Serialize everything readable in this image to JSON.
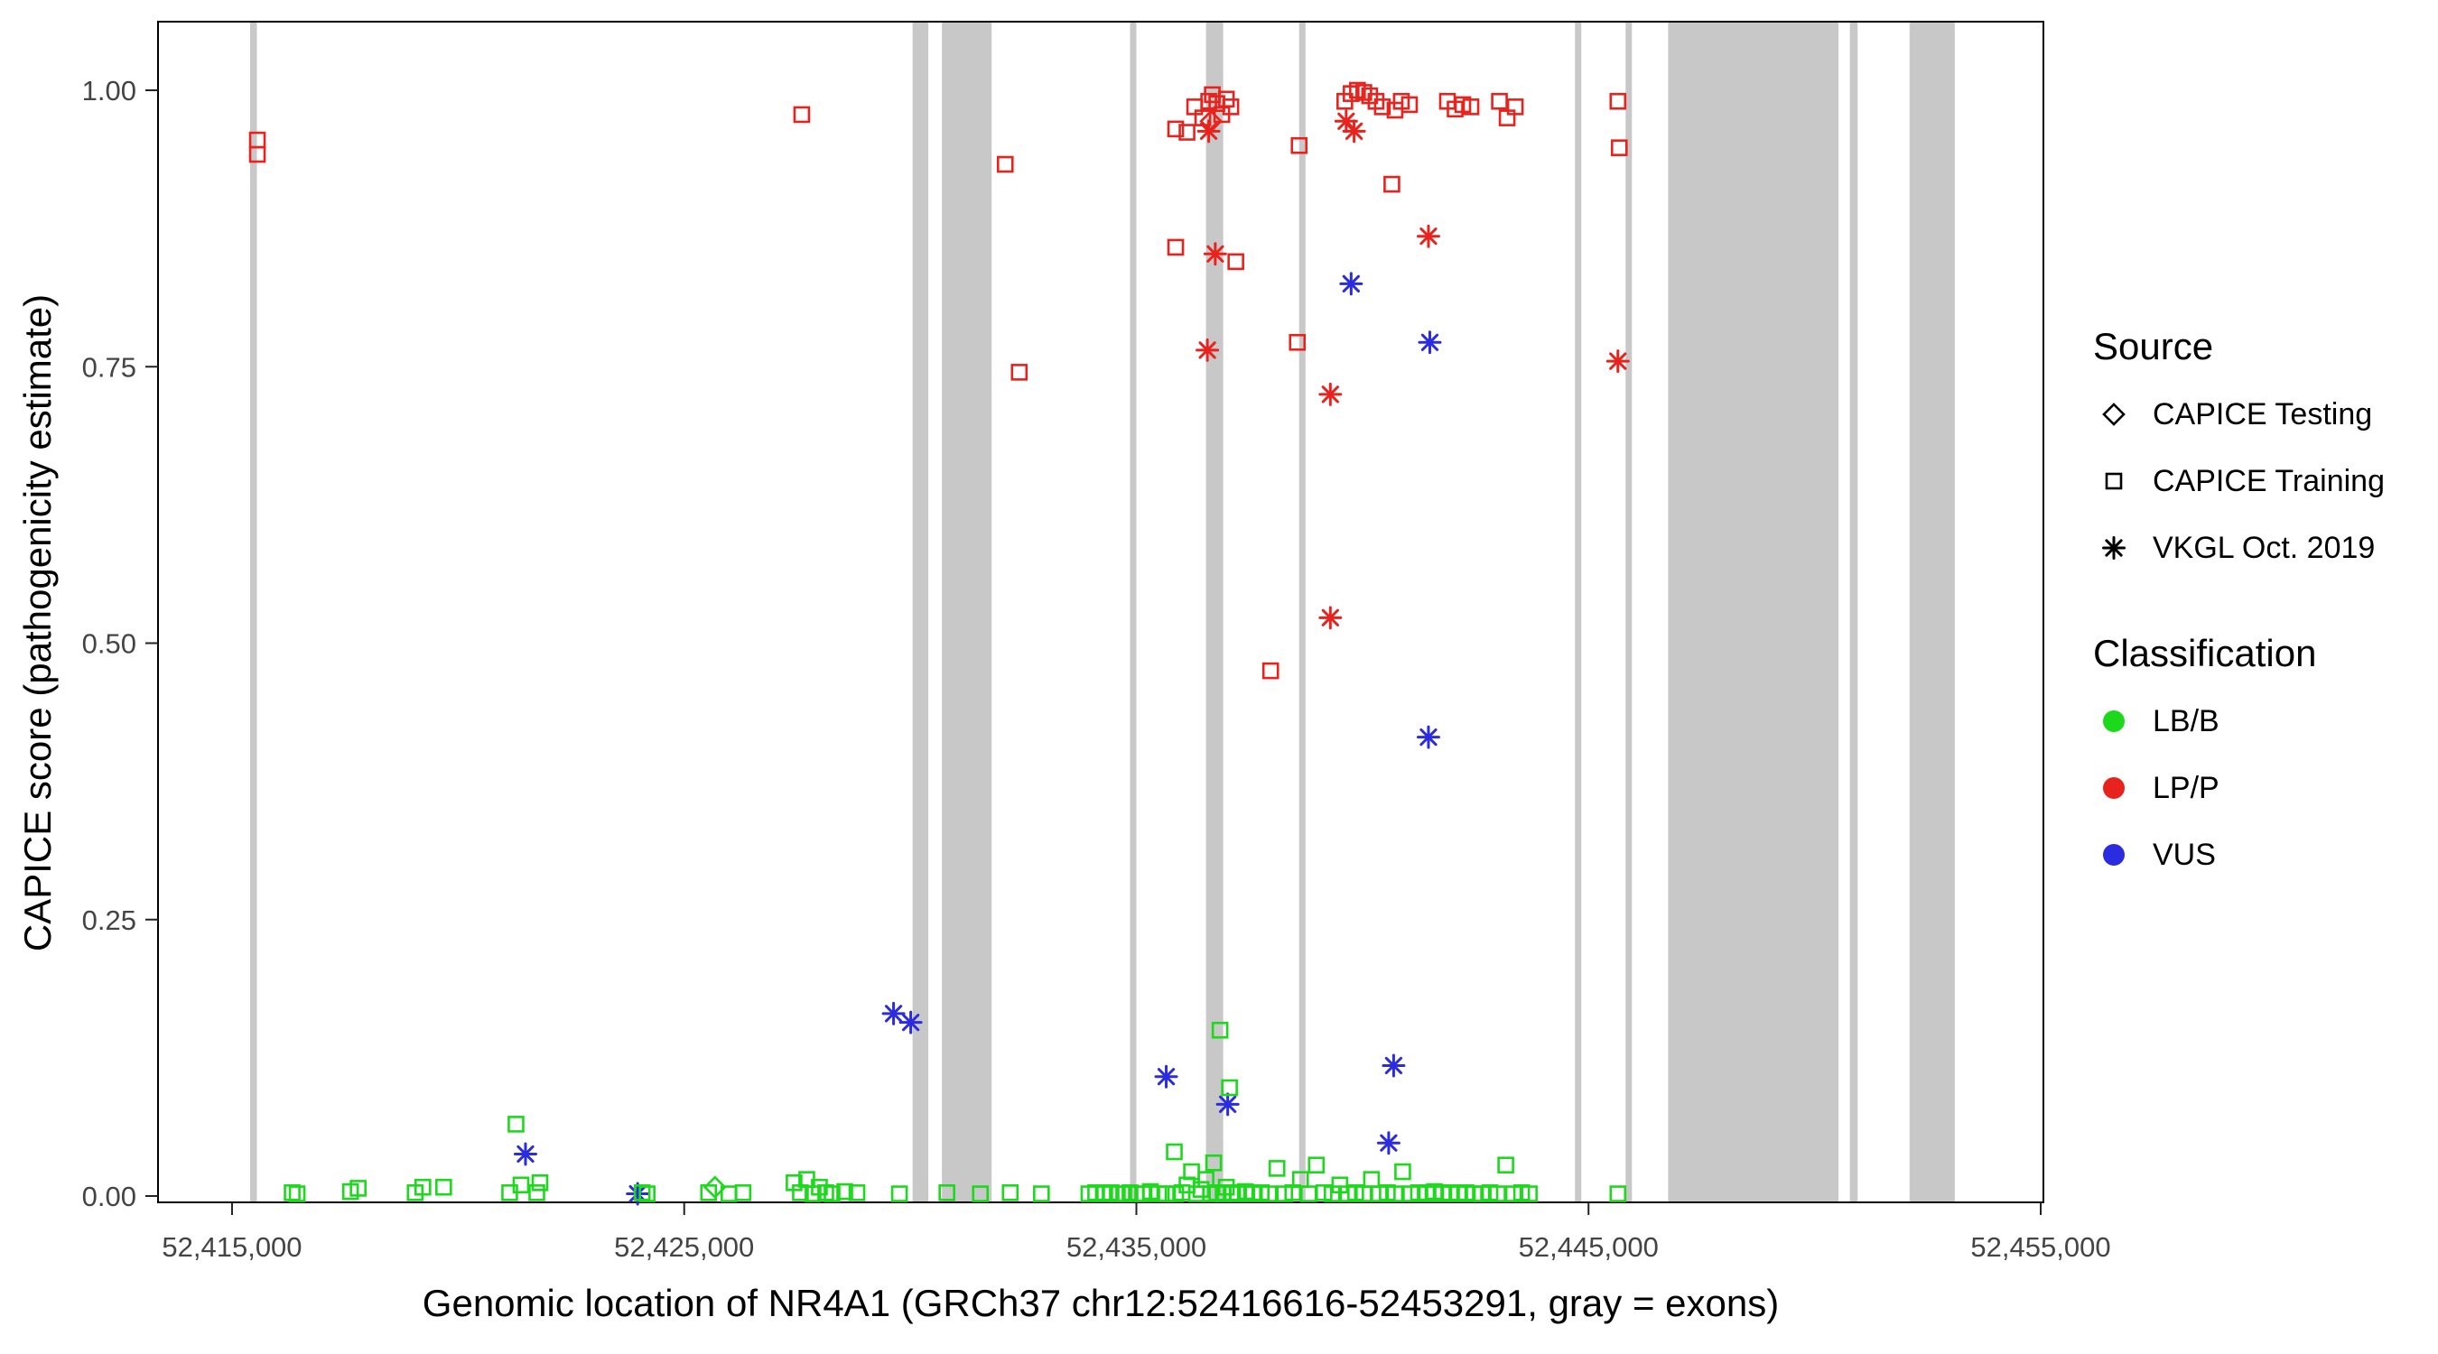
{
  "legend": {
    "source": {
      "title": "Source",
      "items": [
        {
          "label": "CAPICE Testing",
          "marker": "diamond"
        },
        {
          "label": "CAPICE Training",
          "marker": "square"
        },
        {
          "label": "VKGL Oct. 2019",
          "marker": "asterisk"
        }
      ]
    },
    "classification": {
      "title": "Classification",
      "items": [
        {
          "label": "LB/B"
        },
        {
          "label": "LP/P"
        },
        {
          "label": "VUS"
        }
      ]
    }
  },
  "chart_data": {
    "type": "scatter",
    "title": "",
    "xlabel": "Genomic location of NR4A1 (GRCh37 chr12:52416616-52453291, gray = exons)",
    "ylabel": "CAPICE score (pathogenicity estimate)",
    "legend_position": "right",
    "grid": false,
    "xlim": [
      52413363,
      52455060
    ],
    "ylim": [
      -0.00571,
      1.06204
    ],
    "x_ticks": {
      "values": [
        52415000,
        52425000,
        52435000,
        52445000,
        52455000
      ],
      "labels": [
        "52,415,000",
        "52,425,000",
        "52,435,000",
        "52,445,000",
        "52,455,000"
      ]
    },
    "y_ticks": {
      "values": [
        0.0,
        0.25,
        0.5,
        0.75,
        1.0
      ],
      "labels": [
        "0.00",
        "0.25",
        "0.50",
        "0.75",
        "1.00"
      ]
    },
    "colors": {
      "exon": "#c8c8c8",
      "panel_border": "#000000",
      "tick_label": "#444444"
    },
    "class_colors": {
      "LB/B": "#1cd91c",
      "LP/P": "#e8231e",
      "VUS": "#2b2be0"
    },
    "source_names": {
      "testing": "CAPICE Testing",
      "training": "CAPICE Training",
      "vkgl": "VKGL Oct. 2019"
    },
    "source_markers": {
      "testing": "diamond",
      "training": "square",
      "vkgl": "asterisk"
    },
    "exons": [
      [
        52415400,
        52415550
      ],
      [
        52430050,
        52430400
      ],
      [
        52430700,
        52431800
      ],
      [
        52434860,
        52435000
      ],
      [
        52436540,
        52436920
      ],
      [
        52438600,
        52438740
      ],
      [
        52444700,
        52444840
      ],
      [
        52445820,
        52445960
      ],
      [
        52446760,
        52450530
      ],
      [
        52450780,
        52450950
      ],
      [
        52452100,
        52453100
      ]
    ],
    "points": [
      [
        52415560,
        0.955,
        "LP/P",
        "training"
      ],
      [
        52415560,
        0.942,
        "LP/P",
        "training"
      ],
      [
        52427600,
        0.978,
        "LP/P",
        "training"
      ],
      [
        52432100,
        0.933,
        "LP/P",
        "training"
      ],
      [
        52432410,
        0.745,
        "LP/P",
        "training"
      ],
      [
        52435870,
        0.965,
        "LP/P",
        "training"
      ],
      [
        52436120,
        0.962,
        "LP/P",
        "training"
      ],
      [
        52436290,
        0.985,
        "LP/P",
        "training"
      ],
      [
        52436470,
        0.975,
        "LP/P",
        "training"
      ],
      [
        52436600,
        0.99,
        "LP/P",
        "training"
      ],
      [
        52436680,
        0.996,
        "LP/P",
        "training"
      ],
      [
        52436780,
        0.988,
        "LP/P",
        "training"
      ],
      [
        52436890,
        0.978,
        "LP/P",
        "training"
      ],
      [
        52436990,
        0.992,
        "LP/P",
        "training"
      ],
      [
        52437090,
        0.985,
        "LP/P",
        "training"
      ],
      [
        52435870,
        0.858,
        "LP/P",
        "training"
      ],
      [
        52437200,
        0.845,
        "LP/P",
        "training"
      ],
      [
        52438600,
        0.95,
        "LP/P",
        "training"
      ],
      [
        52438560,
        0.772,
        "LP/P",
        "training"
      ],
      [
        52437970,
        0.475,
        "LP/P",
        "training"
      ],
      [
        52439610,
        0.99,
        "LP/P",
        "training"
      ],
      [
        52439750,
        0.997,
        "LP/P",
        "training"
      ],
      [
        52439890,
        1.0,
        "LP/P",
        "training"
      ],
      [
        52440030,
        0.998,
        "LP/P",
        "training"
      ],
      [
        52440160,
        0.995,
        "LP/P",
        "training"
      ],
      [
        52440300,
        0.99,
        "LP/P",
        "training"
      ],
      [
        52440440,
        0.985,
        "LP/P",
        "training"
      ],
      [
        52440720,
        0.982,
        "LP/P",
        "training"
      ],
      [
        52440860,
        0.99,
        "LP/P",
        "training"
      ],
      [
        52441040,
        0.987,
        "LP/P",
        "training"
      ],
      [
        52440650,
        0.915,
        "LP/P",
        "training"
      ],
      [
        52441880,
        0.99,
        "LP/P",
        "training"
      ],
      [
        52442050,
        0.983,
        "LP/P",
        "training"
      ],
      [
        52442220,
        0.987,
        "LP/P",
        "training"
      ],
      [
        52442400,
        0.985,
        "LP/P",
        "training"
      ],
      [
        52443030,
        0.99,
        "LP/P",
        "training"
      ],
      [
        52443200,
        0.975,
        "LP/P",
        "training"
      ],
      [
        52443380,
        0.985,
        "LP/P",
        "training"
      ],
      [
        52445650,
        0.99,
        "LP/P",
        "training"
      ],
      [
        52445680,
        0.948,
        "LP/P",
        "training"
      ],
      [
        52436650,
        0.972,
        "LP/P",
        "testing"
      ],
      [
        52436600,
        0.963,
        "LP/P",
        "vkgl"
      ],
      [
        52436745,
        0.852,
        "LP/P",
        "vkgl"
      ],
      [
        52436570,
        0.765,
        "LP/P",
        "vkgl"
      ],
      [
        52439290,
        0.725,
        "LP/P",
        "vkgl"
      ],
      [
        52439290,
        0.523,
        "LP/P",
        "vkgl"
      ],
      [
        52439640,
        0.972,
        "LP/P",
        "vkgl"
      ],
      [
        52439815,
        0.963,
        "LP/P",
        "vkgl"
      ],
      [
        52441460,
        0.868,
        "LP/P",
        "vkgl"
      ],
      [
        52445650,
        0.755,
        "LP/P",
        "vkgl"
      ],
      [
        52439750,
        0.825,
        "VUS",
        "vkgl"
      ],
      [
        52441490,
        0.772,
        "VUS",
        "vkgl"
      ],
      [
        52441460,
        0.415,
        "VUS",
        "vkgl"
      ],
      [
        52440690,
        0.118,
        "VUS",
        "vkgl"
      ],
      [
        52440580,
        0.048,
        "VUS",
        "vkgl"
      ],
      [
        52429630,
        0.165,
        "VUS",
        "vkgl"
      ],
      [
        52430010,
        0.157,
        "VUS",
        "vkgl"
      ],
      [
        52435660,
        0.108,
        "VUS",
        "vkgl"
      ],
      [
        52437020,
        0.083,
        "VUS",
        "vkgl"
      ],
      [
        52421490,
        0.038,
        "VUS",
        "vkgl"
      ],
      [
        52423970,
        0.002,
        "VUS",
        "vkgl"
      ],
      [
        52425680,
        0.008,
        "LB/B",
        "testing"
      ],
      [
        52416330,
        0.003,
        "LB/B",
        "training"
      ],
      [
        52416440,
        0.002,
        "LB/B",
        "training"
      ],
      [
        52417620,
        0.004,
        "LB/B",
        "training"
      ],
      [
        52417790,
        0.007,
        "LB/B",
        "training"
      ],
      [
        52419050,
        0.003,
        "LB/B",
        "training"
      ],
      [
        52419220,
        0.008,
        "LB/B",
        "training"
      ],
      [
        52419680,
        0.008,
        "LB/B",
        "training"
      ],
      [
        52421140,
        0.003,
        "LB/B",
        "training"
      ],
      [
        52421280,
        0.065,
        "LB/B",
        "training"
      ],
      [
        52421390,
        0.01,
        "LB/B",
        "training"
      ],
      [
        52421740,
        0.003,
        "LB/B",
        "training"
      ],
      [
        52421810,
        0.012,
        "LB/B",
        "training"
      ],
      [
        52424070,
        0.003,
        "LB/B",
        "training"
      ],
      [
        52424180,
        0.002,
        "LB/B",
        "training"
      ],
      [
        52425540,
        0.003,
        "LB/B",
        "training"
      ],
      [
        52425990,
        0.002,
        "LB/B",
        "training"
      ],
      [
        52426300,
        0.003,
        "LB/B",
        "training"
      ],
      [
        52427430,
        0.012,
        "LB/B",
        "training"
      ],
      [
        52427570,
        0.003,
        "LB/B",
        "training"
      ],
      [
        52427710,
        0.015,
        "LB/B",
        "training"
      ],
      [
        52427850,
        0.002,
        "LB/B",
        "training"
      ],
      [
        52427990,
        0.008,
        "LB/B",
        "training"
      ],
      [
        52428130,
        0.003,
        "LB/B",
        "training"
      ],
      [
        52428270,
        0.002,
        "LB/B",
        "training"
      ],
      [
        52428550,
        0.004,
        "LB/B",
        "training"
      ],
      [
        52428820,
        0.003,
        "LB/B",
        "training"
      ],
      [
        52429760,
        0.002,
        "LB/B",
        "training"
      ],
      [
        52430810,
        0.003,
        "LB/B",
        "training"
      ],
      [
        52431550,
        0.002,
        "LB/B",
        "training"
      ],
      [
        52432210,
        0.003,
        "LB/B",
        "training"
      ],
      [
        52432900,
        0.002,
        "LB/B",
        "training"
      ],
      [
        52433950,
        0.002,
        "LB/B",
        "training"
      ],
      [
        52434100,
        0.003,
        "LB/B",
        "training"
      ],
      [
        52434300,
        0.002,
        "LB/B",
        "training"
      ],
      [
        52434440,
        0.003,
        "LB/B",
        "training"
      ],
      [
        52434580,
        0.002,
        "LB/B",
        "training"
      ],
      [
        52434720,
        0.002,
        "LB/B",
        "training"
      ],
      [
        52434860,
        0.003,
        "LB/B",
        "training"
      ],
      [
        52435000,
        0.002,
        "LB/B",
        "training"
      ],
      [
        52435140,
        0.002,
        "LB/B",
        "training"
      ],
      [
        52435310,
        0.004,
        "LB/B",
        "training"
      ],
      [
        52435490,
        0.002,
        "LB/B",
        "training"
      ],
      [
        52435660,
        0.002,
        "LB/B",
        "training"
      ],
      [
        52435840,
        0.04,
        "LB/B",
        "training"
      ],
      [
        52435870,
        0.002,
        "LB/B",
        "training"
      ],
      [
        52436010,
        0.003,
        "LB/B",
        "training"
      ],
      [
        52436120,
        0.01,
        "LB/B",
        "training"
      ],
      [
        52436220,
        0.022,
        "LB/B",
        "training"
      ],
      [
        52436330,
        0.002,
        "LB/B",
        "training"
      ],
      [
        52436430,
        0.006,
        "LB/B",
        "training"
      ],
      [
        52436540,
        0.015,
        "LB/B",
        "training"
      ],
      [
        52436640,
        0.002,
        "LB/B",
        "training"
      ],
      [
        52436710,
        0.03,
        "LB/B",
        "training"
      ],
      [
        52436780,
        0.003,
        "LB/B",
        "training"
      ],
      [
        52436850,
        0.15,
        "LB/B",
        "training"
      ],
      [
        52436920,
        0.002,
        "LB/B",
        "training"
      ],
      [
        52436990,
        0.008,
        "LB/B",
        "training"
      ],
      [
        52437060,
        0.098,
        "LB/B",
        "training"
      ],
      [
        52437130,
        0.003,
        "LB/B",
        "training"
      ],
      [
        52437230,
        0.002,
        "LB/B",
        "training"
      ],
      [
        52437410,
        0.004,
        "LB/B",
        "training"
      ],
      [
        52437580,
        0.002,
        "LB/B",
        "training"
      ],
      [
        52437760,
        0.003,
        "LB/B",
        "training"
      ],
      [
        52437930,
        0.002,
        "LB/B",
        "training"
      ],
      [
        52438110,
        0.025,
        "LB/B",
        "training"
      ],
      [
        52438280,
        0.002,
        "LB/B",
        "training"
      ],
      [
        52438460,
        0.003,
        "LB/B",
        "training"
      ],
      [
        52438630,
        0.015,
        "LB/B",
        "training"
      ],
      [
        52438810,
        0.002,
        "LB/B",
        "training"
      ],
      [
        52438980,
        0.028,
        "LB/B",
        "training"
      ],
      [
        52439150,
        0.003,
        "LB/B",
        "training"
      ],
      [
        52439330,
        0.002,
        "LB/B",
        "training"
      ],
      [
        52439500,
        0.01,
        "LB/B",
        "training"
      ],
      [
        52439680,
        0.002,
        "LB/B",
        "training"
      ],
      [
        52439850,
        0.003,
        "LB/B",
        "training"
      ],
      [
        52440030,
        0.002,
        "LB/B",
        "training"
      ],
      [
        52440200,
        0.015,
        "LB/B",
        "training"
      ],
      [
        52440370,
        0.002,
        "LB/B",
        "training"
      ],
      [
        52440550,
        0.003,
        "LB/B",
        "training"
      ],
      [
        52440720,
        0.002,
        "LB/B",
        "training"
      ],
      [
        52440890,
        0.022,
        "LB/B",
        "training"
      ],
      [
        52441070,
        0.002,
        "LB/B",
        "training"
      ],
      [
        52441240,
        0.003,
        "LB/B",
        "training"
      ],
      [
        52441420,
        0.002,
        "LB/B",
        "training"
      ],
      [
        52441590,
        0.004,
        "LB/B",
        "training"
      ],
      [
        52441770,
        0.002,
        "LB/B",
        "training"
      ],
      [
        52441940,
        0.003,
        "LB/B",
        "training"
      ],
      [
        52442120,
        0.002,
        "LB/B",
        "training"
      ],
      [
        52442290,
        0.003,
        "LB/B",
        "training"
      ],
      [
        52442470,
        0.002,
        "LB/B",
        "training"
      ],
      [
        52442640,
        0.002,
        "LB/B",
        "training"
      ],
      [
        52442820,
        0.003,
        "LB/B",
        "training"
      ],
      [
        52442990,
        0.002,
        "LB/B",
        "training"
      ],
      [
        52443170,
        0.028,
        "LB/B",
        "training"
      ],
      [
        52443340,
        0.002,
        "LB/B",
        "training"
      ],
      [
        52443520,
        0.003,
        "LB/B",
        "training"
      ],
      [
        52443690,
        0.002,
        "LB/B",
        "training"
      ],
      [
        52445650,
        0.002,
        "LB/B",
        "training"
      ]
    ]
  }
}
